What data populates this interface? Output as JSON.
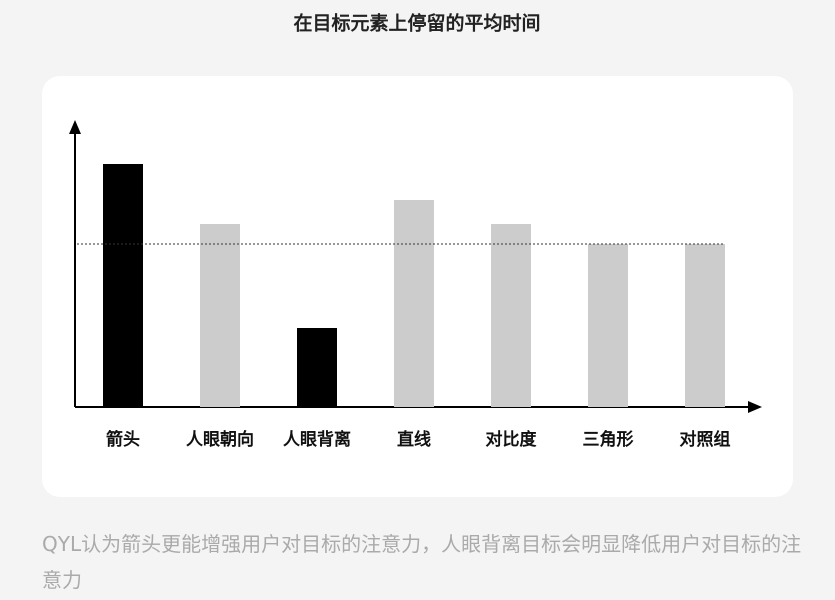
{
  "chart_data": {
    "type": "bar",
    "title": "在目标元素上停留的平均时间",
    "categories": [
      "箭头",
      "人眼朝向",
      "人眼背离",
      "直线",
      "对比度",
      "三角形",
      "对照组"
    ],
    "values": [
      243,
      183,
      79,
      207,
      183,
      163,
      163
    ],
    "colors": [
      "#000000",
      "#cccccc",
      "#000000",
      "#cccccc",
      "#cccccc",
      "#cccccc",
      "#cccccc"
    ],
    "reference": 163,
    "ylim": [
      0,
      287
    ]
  },
  "caption": "QYL认为箭头更能增强用户对目标的注意力，人眼背离目标会明显降低用户对目标的注意力"
}
